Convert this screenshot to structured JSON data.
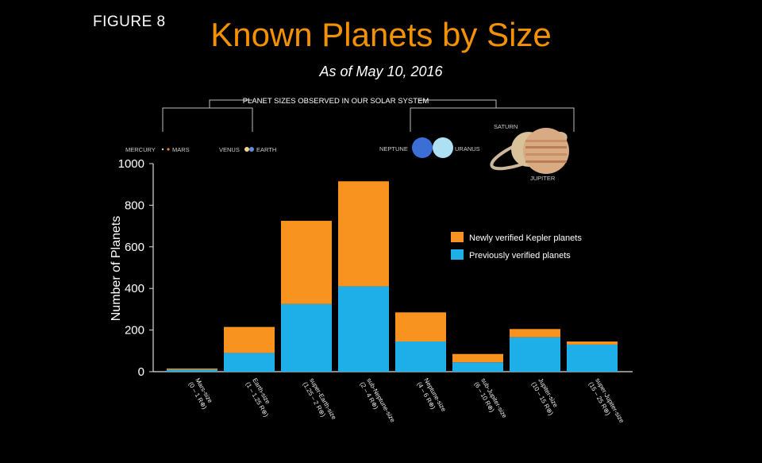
{
  "figure_label": "FIGURE 8",
  "chart_data": {
    "type": "bar",
    "stacked": true,
    "title": "Known Planets by Size",
    "subtitle": "As of May 10, 2016",
    "ylabel": "Number of Planets",
    "ylim": [
      0,
      1000
    ],
    "yticks": [
      0,
      200,
      400,
      600,
      800,
      1000
    ],
    "categories": [
      {
        "name": "Mars-size",
        "range": "(0 – 1 R⊕)"
      },
      {
        "name": "Earth-size",
        "range": "(1 – 1.25 R⊕)"
      },
      {
        "name": "super-Earth-size",
        "range": "(1.25 – 2 R⊕)"
      },
      {
        "name": "sub-Neptune-size",
        "range": "(2 – 4 R⊕)"
      },
      {
        "name": "Neptune-size",
        "range": "(4 – 6 R⊕)"
      },
      {
        "name": "sub-Jupiter-size",
        "range": "(6 – 10 R⊕)"
      },
      {
        "name": "Jupiter-size",
        "range": "(10 – 15 R⊕)"
      },
      {
        "name": "super-Jupiter-size",
        "range": "(15 – 25 R⊕)"
      }
    ],
    "series": [
      {
        "name": "Previously verified planets",
        "color": "#1eaee8",
        "values": [
          10,
          90,
          325,
          410,
          145,
          45,
          165,
          130
        ]
      },
      {
        "name": "Newly verified Kepler planets",
        "color": "#f7931e",
        "values": [
          5,
          125,
          400,
          505,
          140,
          40,
          40,
          15
        ]
      }
    ],
    "legend_position": "right"
  },
  "solar_system": {
    "heading": "PLANET SIZES OBSERVED IN OUR SOLAR SYSTEM",
    "planets": [
      {
        "name": "MERCURY",
        "color": "#cfcfcf"
      },
      {
        "name": "MARS",
        "color": "#e8863a"
      },
      {
        "name": "VENUS",
        "color": "#f2d18b"
      },
      {
        "name": "EARTH",
        "color": "#5e90d8"
      },
      {
        "name": "NEPTUNE",
        "color": "#3b6fd6"
      },
      {
        "name": "URANUS",
        "color": "#aee0f4"
      },
      {
        "name": "SATURN",
        "color": "#d9c29a"
      },
      {
        "name": "JUPITER",
        "color": "#d8ab82"
      }
    ]
  }
}
